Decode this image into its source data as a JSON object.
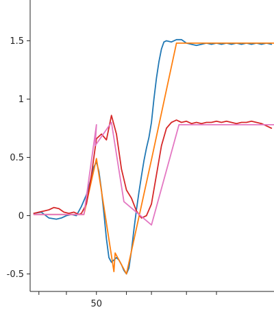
{
  "chart_data": {
    "type": "line",
    "title": "",
    "xlabel": "",
    "ylabel": "",
    "xlim": [
      23.5,
      121
    ],
    "ylim": [
      -0.65,
      1.85
    ],
    "grid": false,
    "legend": "none",
    "x_ticks": [
      {
        "value": 27,
        "label": ""
      },
      {
        "value": 38,
        "label": ""
      },
      {
        "value": 50,
        "label": "50"
      },
      {
        "value": 62,
        "label": ""
      },
      {
        "value": 72,
        "label": ""
      },
      {
        "value": 86,
        "label": ""
      },
      {
        "value": 98,
        "label": ""
      }
    ],
    "y_ticks": [
      {
        "value": -0.5,
        "label": "-0.5"
      },
      {
        "value": 0,
        "label": "0"
      },
      {
        "value": 0.5,
        "label": "0.5"
      },
      {
        "value": 1,
        "label": "1"
      },
      {
        "value": 1.5,
        "label": "1.5"
      }
    ],
    "series": [
      {
        "color": "#1f77b4",
        "x": [
          25,
          28,
          31,
          34,
          36,
          38,
          40,
          42,
          44,
          46,
          48,
          49,
          50,
          51,
          52,
          53,
          54,
          55,
          56,
          57,
          58,
          59,
          60,
          61,
          62,
          63,
          64,
          65,
          66,
          67,
          68,
          69,
          70,
          71,
          72,
          73,
          74,
          75,
          76,
          77,
          78,
          80,
          82,
          84,
          86,
          88,
          90,
          92,
          94,
          96,
          98,
          100,
          102,
          104,
          106,
          108,
          110,
          112,
          114,
          116,
          118,
          120
        ],
        "y": [
          0.02,
          0.03,
          -0.02,
          -0.03,
          -0.02,
          0.0,
          0.01,
          0.0,
          0.08,
          0.18,
          0.33,
          0.42,
          0.46,
          0.38,
          0.22,
          0.02,
          -0.2,
          -0.36,
          -0.4,
          -0.38,
          -0.36,
          -0.38,
          -0.42,
          -0.47,
          -0.5,
          -0.45,
          -0.3,
          -0.12,
          0.05,
          0.2,
          0.34,
          0.47,
          0.58,
          0.67,
          0.8,
          1.0,
          1.18,
          1.32,
          1.43,
          1.49,
          1.5,
          1.49,
          1.51,
          1.51,
          1.48,
          1.47,
          1.46,
          1.47,
          1.48,
          1.47,
          1.48,
          1.47,
          1.48,
          1.47,
          1.48,
          1.47,
          1.48,
          1.47,
          1.48,
          1.47,
          1.48,
          1.47
        ]
      },
      {
        "color": "#ff7f0e",
        "x": [
          25,
          45,
          50,
          57,
          57.5,
          62,
          72,
          82,
          121
        ],
        "y": [
          0.01,
          0.01,
          0.49,
          -0.48,
          -0.32,
          -0.5,
          0.48,
          1.48,
          1.48
        ]
      },
      {
        "color": "#d62728",
        "x": [
          25,
          27,
          29,
          31,
          33,
          35,
          37,
          39,
          41,
          43,
          44,
          46,
          48,
          50,
          52,
          54,
          56,
          58,
          60,
          62,
          64,
          66,
          68,
          70,
          72,
          74,
          76,
          78,
          80,
          82,
          84,
          86,
          88,
          90,
          92,
          94,
          96,
          98,
          100,
          102,
          104,
          106,
          108,
          110,
          112,
          114,
          116,
          118,
          120
        ],
        "y": [
          0.02,
          0.03,
          0.04,
          0.05,
          0.07,
          0.06,
          0.03,
          0.02,
          0.03,
          0.01,
          0.02,
          0.1,
          0.35,
          0.66,
          0.7,
          0.65,
          0.86,
          0.7,
          0.4,
          0.22,
          0.15,
          0.04,
          -0.02,
          0.0,
          0.1,
          0.35,
          0.6,
          0.75,
          0.8,
          0.82,
          0.8,
          0.81,
          0.79,
          0.8,
          0.79,
          0.8,
          0.8,
          0.81,
          0.8,
          0.81,
          0.8,
          0.79,
          0.8,
          0.8,
          0.81,
          0.8,
          0.79,
          0.77,
          0.75
        ]
      },
      {
        "color": "#e377c2",
        "x": [
          25,
          45,
          50,
          49.5,
          56,
          61,
          72,
          83,
          121
        ],
        "y": [
          0.01,
          0.01,
          0.78,
          0.6,
          0.8,
          0.12,
          -0.08,
          0.78,
          0.78
        ]
      }
    ]
  }
}
